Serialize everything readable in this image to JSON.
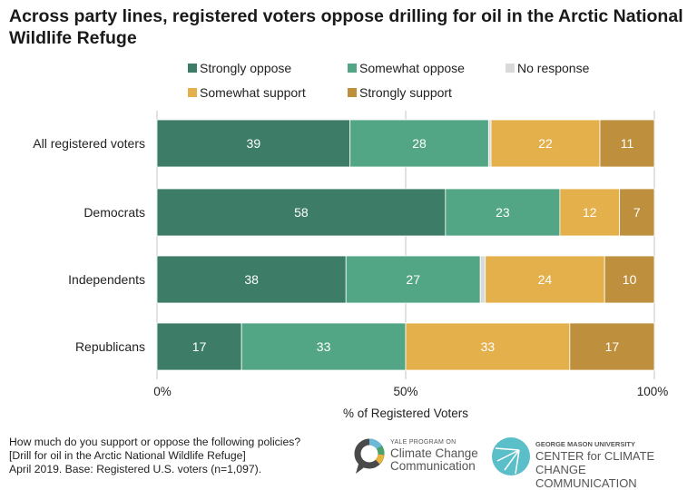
{
  "chart_data": {
    "type": "bar",
    "orientation": "horizontal",
    "stacked": true,
    "title": "Across party lines, registered voters oppose drilling for oil in the Arctic National Wildlife Refuge",
    "categories": [
      "All registered voters",
      "Democrats",
      "Independents",
      "Republicans"
    ],
    "series": [
      {
        "name": "Strongly oppose",
        "color": "#3d7d68",
        "values": [
          39,
          58,
          38,
          17
        ]
      },
      {
        "name": "Somewhat oppose",
        "color": "#52a686",
        "values": [
          28,
          23,
          27,
          33
        ]
      },
      {
        "name": "No response",
        "color": "#d9d9d9",
        "values": [
          0.5,
          0,
          1,
          0
        ]
      },
      {
        "name": "Somewhat support",
        "color": "#e4b04b",
        "values": [
          22,
          12,
          24,
          33
        ]
      },
      {
        "name": "Strongly support",
        "color": "#be903e",
        "values": [
          11,
          7,
          10,
          17
        ]
      }
    ],
    "xlabel": "% of Registered Voters",
    "xlim": [
      0,
      100
    ],
    "xticks": [
      "0%",
      "50%",
      "100%"
    ],
    "grid": true,
    "legend": "top"
  },
  "footer": {
    "lines": [
      "How much do you support or oppose the following policies?",
      "[Drill for oil in the Arctic National Wildlife Refuge]",
      "April 2019. Base: Registered U.S. voters (n=1,097)."
    ]
  },
  "logos": {
    "yale_small": "YALE PROGRAM ON",
    "yale_line1": "Climate Change",
    "yale_line2": "Communication",
    "gmu_small": "GEORGE MASON UNIVERSITY",
    "gmu_line1": "CENTER for CLIMATE CHANGE",
    "gmu_line2": "COMMUNICATION"
  }
}
